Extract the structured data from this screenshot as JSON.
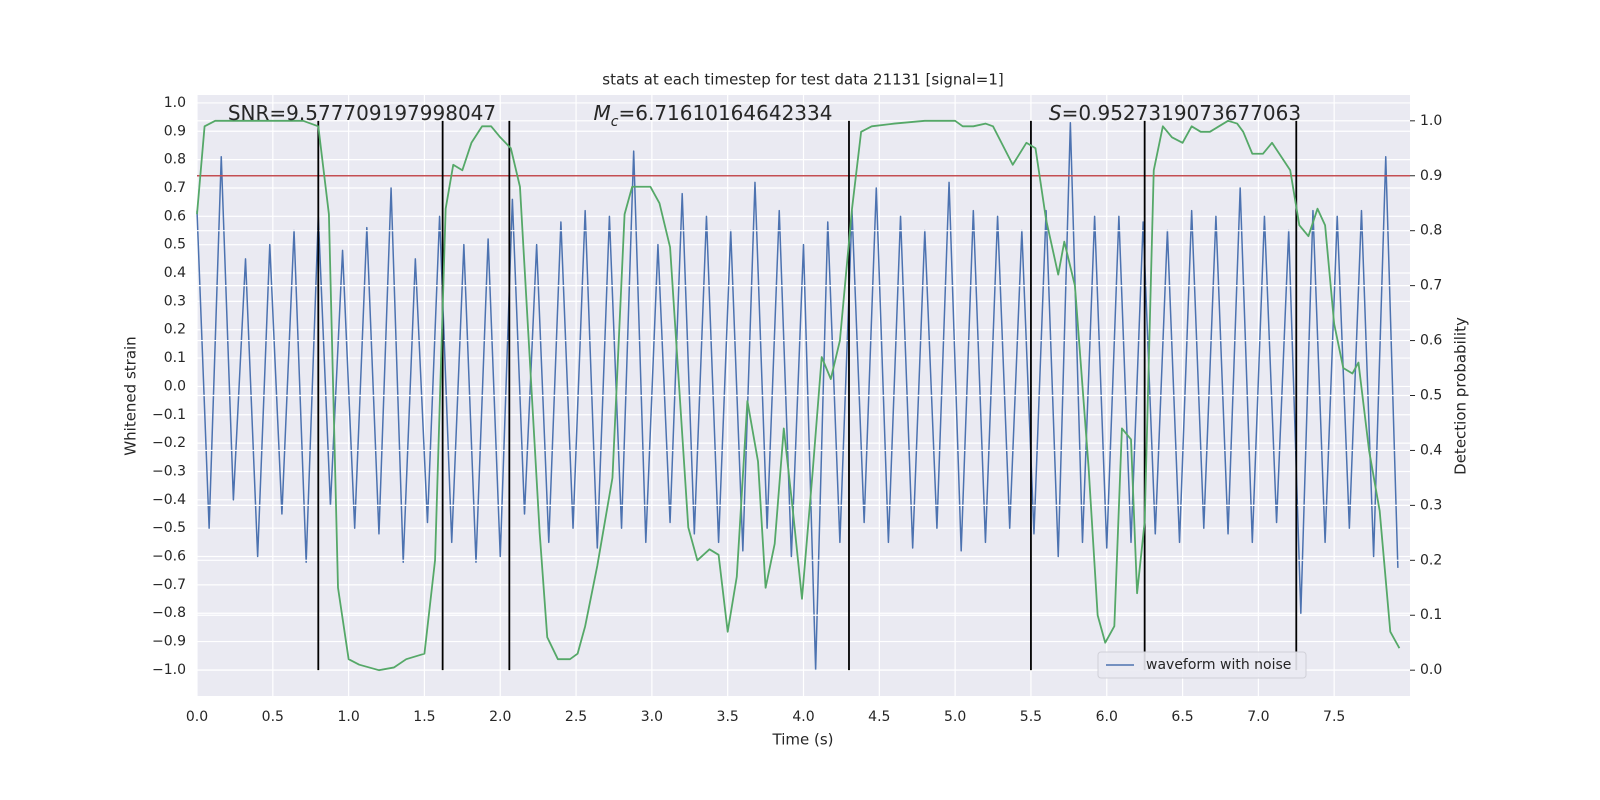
{
  "chart_data": {
    "type": "line",
    "title": "stats at each timestep for test data 21131 [signal=1]",
    "xlabel": "Time (s)",
    "ylabel": "Whitened strain",
    "y2label": "Detection probability",
    "xlim": [
      0,
      8.0
    ],
    "ylim": [
      -1.092,
      1.028
    ],
    "y2lim": [
      -0.047,
      1.047
    ],
    "grid": true,
    "legend": "lower right",
    "xticks": [
      {
        "value": 0,
        "label": "0.0"
      },
      {
        "value": 0.5,
        "label": "0.5"
      },
      {
        "value": 1,
        "label": "1.0"
      },
      {
        "value": 1.5,
        "label": "1.5"
      },
      {
        "value": 2,
        "label": "2.0"
      },
      {
        "value": 2.5,
        "label": "2.5"
      },
      {
        "value": 3,
        "label": "3.0"
      },
      {
        "value": 3.5,
        "label": "3.5"
      },
      {
        "value": 4,
        "label": "4.0"
      },
      {
        "value": 4.5,
        "label": "4.5"
      },
      {
        "value": 5,
        "label": "5.0"
      },
      {
        "value": 5.5,
        "label": "5.5"
      },
      {
        "value": 6,
        "label": "6.0"
      },
      {
        "value": 6.5,
        "label": "6.5"
      },
      {
        "value": 7,
        "label": "7.0"
      },
      {
        "value": 7.5,
        "label": "7.5"
      }
    ],
    "yticks": [
      {
        "value": -1,
        "label": "−1.0"
      },
      {
        "value": -0.9,
        "label": "−0.9"
      },
      {
        "value": -0.8,
        "label": "−0.8"
      },
      {
        "value": -0.7,
        "label": "−0.7"
      },
      {
        "value": -0.6,
        "label": "−0.6"
      },
      {
        "value": -0.5,
        "label": "−0.5"
      },
      {
        "value": -0.4,
        "label": "−0.4"
      },
      {
        "value": -0.3,
        "label": "−0.3"
      },
      {
        "value": -0.2,
        "label": "−0.2"
      },
      {
        "value": -0.1,
        "label": "−0.1"
      },
      {
        "value": 0,
        "label": "0.0"
      },
      {
        "value": 0.1,
        "label": "0.1"
      },
      {
        "value": 0.2,
        "label": "0.2"
      },
      {
        "value": 0.3,
        "label": "0.3"
      },
      {
        "value": 0.4,
        "label": "0.4"
      },
      {
        "value": 0.5,
        "label": "0.5"
      },
      {
        "value": 0.6,
        "label": "0.6"
      },
      {
        "value": 0.7,
        "label": "0.7"
      },
      {
        "value": 0.8,
        "label": "0.8"
      },
      {
        "value": 0.9,
        "label": "0.9"
      },
      {
        "value": 1,
        "label": "1.0"
      }
    ],
    "y2ticks": [
      {
        "value": 0,
        "label": "0.0"
      },
      {
        "value": 0.1,
        "label": "0.1"
      },
      {
        "value": 0.2,
        "label": "0.2"
      },
      {
        "value": 0.3,
        "label": "0.3"
      },
      {
        "value": 0.4,
        "label": "0.4"
      },
      {
        "value": 0.5,
        "label": "0.5"
      },
      {
        "value": 0.6,
        "label": "0.6"
      },
      {
        "value": 0.7,
        "label": "0.7"
      },
      {
        "value": 0.8,
        "label": "0.8"
      },
      {
        "value": 0.9,
        "label": "0.9"
      },
      {
        "value": 1,
        "label": "1.0"
      }
    ],
    "series": [
      {
        "name": "waveform with noise",
        "color": "#4c72b0",
        "x": [
          0,
          0.08,
          0.16,
          0.24,
          0.32,
          0.4,
          0.48,
          0.56,
          0.64,
          0.72,
          0.8,
          0.88,
          0.96,
          1.04,
          1.12,
          1.2,
          1.28,
          1.36,
          1.44,
          1.52,
          1.6,
          1.68,
          1.76,
          1.84,
          1.92,
          2,
          2.08,
          2.16,
          2.24,
          2.32,
          2.4,
          2.48,
          2.56,
          2.64,
          2.72,
          2.8,
          2.88,
          2.96,
          3.04,
          3.12,
          3.2,
          3.28,
          3.36,
          3.44,
          3.52,
          3.6,
          3.68,
          3.76,
          3.84,
          3.92,
          4,
          4.08,
          4.16,
          4.24,
          4.32,
          4.4,
          4.48,
          4.56,
          4.64,
          4.72,
          4.8,
          4.88,
          4.96,
          5.04,
          5.12,
          5.2,
          5.28,
          5.36,
          5.44,
          5.52,
          5.6,
          5.68,
          5.76,
          5.84,
          5.92,
          6,
          6.08,
          6.16,
          6.24,
          6.32,
          6.4,
          6.48,
          6.56,
          6.64,
          6.72,
          6.8,
          6.88,
          6.96,
          7.04,
          7.12,
          7.2,
          7.28,
          7.36,
          7.44,
          7.52,
          7.6,
          7.68,
          7.76,
          7.84,
          7.92
        ],
        "values": [
          0.62,
          -0.5,
          0.81,
          -0.4,
          0.45,
          -0.6,
          0.5,
          -0.45,
          0.55,
          -0.62,
          0.6,
          -0.42,
          0.48,
          -0.5,
          0.56,
          -0.52,
          0.7,
          -0.62,
          0.45,
          -0.48,
          0.6,
          -0.55,
          0.5,
          -0.62,
          0.52,
          -0.6,
          0.66,
          -0.45,
          0.5,
          -0.55,
          0.58,
          -0.5,
          0.62,
          -0.57,
          0.6,
          -0.5,
          0.83,
          -0.55,
          0.5,
          -0.48,
          0.68,
          -0.52,
          0.6,
          -0.55,
          0.55,
          -0.58,
          0.72,
          -0.5,
          0.62,
          -0.6,
          0.5,
          -1.0,
          0.58,
          -0.55,
          0.62,
          -0.48,
          0.7,
          -0.55,
          0.6,
          -0.57,
          0.55,
          -0.5,
          0.72,
          -0.58,
          0.62,
          -0.55,
          0.6,
          -0.5,
          0.55,
          -0.52,
          0.62,
          -0.6,
          0.93,
          -0.55,
          0.6,
          -0.57,
          0.6,
          -0.55,
          0.58,
          -0.52,
          0.55,
          -0.55,
          0.62,
          -0.5,
          0.6,
          -0.52,
          0.7,
          -0.55,
          0.6,
          -0.48,
          0.55,
          -0.8,
          0.62,
          -0.55,
          0.6,
          -0.5,
          0.62,
          -0.6,
          0.81,
          -0.64
        ]
      },
      {
        "color": "#55a868",
        "axis": "y2",
        "x": [
          0,
          0.05,
          0.12,
          0.4,
          0.7,
          0.8,
          0.87,
          0.93,
          1,
          1.07,
          1.2,
          1.3,
          1.38,
          1.5,
          1.57,
          1.64,
          1.69,
          1.75,
          1.81,
          1.88,
          1.94,
          2,
          2.07,
          2.13,
          2.26,
          2.31,
          2.38,
          2.46,
          2.51,
          2.56,
          2.64,
          2.74,
          2.82,
          2.87,
          2.93,
          2.99,
          3.05,
          3.12,
          3.24,
          3.3,
          3.38,
          3.44,
          3.5,
          3.56,
          3.63,
          3.7,
          3.75,
          3.81,
          3.87,
          3.93,
          3.99,
          4.06,
          4.12,
          4.18,
          4.24,
          4.32,
          4.38,
          4.45,
          4.6,
          4.8,
          5,
          5.05,
          5.12,
          5.2,
          5.25,
          5.38,
          5.47,
          5.53,
          5.6,
          5.68,
          5.72,
          5.79,
          5.88,
          5.94,
          5.99,
          6.05,
          6.1,
          6.16,
          6.2,
          6.25,
          6.31,
          6.37,
          6.43,
          6.5,
          6.56,
          6.62,
          6.68,
          6.74,
          6.8,
          6.86,
          6.9,
          6.96,
          7.03,
          7.09,
          7.21,
          7.27,
          7.33,
          7.39,
          7.44,
          7.5,
          7.56,
          7.62,
          7.66,
          7.73,
          7.8,
          7.87,
          7.93
        ],
        "values": [
          0.83,
          0.99,
          1.0,
          1.0,
          1.0,
          0.99,
          0.83,
          0.15,
          0.02,
          0.01,
          0.0,
          0.005,
          0.02,
          0.03,
          0.2,
          0.84,
          0.92,
          0.91,
          0.96,
          0.99,
          0.99,
          0.97,
          0.95,
          0.88,
          0.25,
          0.06,
          0.02,
          0.02,
          0.03,
          0.08,
          0.19,
          0.35,
          0.83,
          0.88,
          0.88,
          0.88,
          0.85,
          0.77,
          0.26,
          0.2,
          0.22,
          0.21,
          0.07,
          0.17,
          0.49,
          0.38,
          0.15,
          0.23,
          0.44,
          0.29,
          0.13,
          0.36,
          0.57,
          0.53,
          0.6,
          0.84,
          0.98,
          0.99,
          0.995,
          1.0,
          1.0,
          0.99,
          0.99,
          0.995,
          0.99,
          0.92,
          0.96,
          0.95,
          0.82,
          0.72,
          0.78,
          0.7,
          0.37,
          0.1,
          0.05,
          0.08,
          0.44,
          0.42,
          0.14,
          0.27,
          0.91,
          0.99,
          0.97,
          0.96,
          0.99,
          0.98,
          0.98,
          0.99,
          1.0,
          0.995,
          0.98,
          0.94,
          0.94,
          0.96,
          0.91,
          0.81,
          0.79,
          0.84,
          0.81,
          0.63,
          0.55,
          0.54,
          0.56,
          0.4,
          0.29,
          0.07,
          0.04
        ]
      }
    ],
    "threshold": {
      "value": 0.9,
      "color": "#c44e52",
      "axis": "y2"
    },
    "vlines": {
      "x": [
        0.8,
        1.62,
        2.06,
        4.3,
        5.5,
        6.25,
        7.25
      ],
      "span": [
        0,
        1
      ],
      "axis": "y2",
      "color": "#000000"
    },
    "annotations": [
      {
        "text": "SNR=9.577709197998047"
      },
      {
        "symbol": "M",
        "subscript": "c",
        "text": "=6.71610164642334"
      },
      {
        "symbol": "S",
        "text": "=0.9527319073677063"
      }
    ]
  }
}
